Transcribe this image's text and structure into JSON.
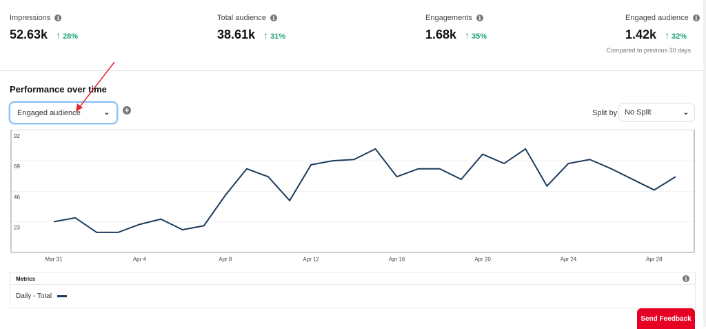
{
  "stats": [
    {
      "label": "Impressions",
      "value": "52.63k",
      "change": "28%"
    },
    {
      "label": "Total audience",
      "value": "38.61k",
      "change": "31%"
    },
    {
      "label": "Engagements",
      "value": "1.68k",
      "change": "35%"
    },
    {
      "label": "Engaged audience",
      "value": "1.42k",
      "change": "32%"
    }
  ],
  "compare_text": "Compared to previous 30 days",
  "section_title": "Performance over time",
  "metric_select": {
    "value": "Engaged audience"
  },
  "split": {
    "label": "Split by",
    "value": "No Split"
  },
  "metrics": {
    "title": "Metrics",
    "legend": "Daily - Total"
  },
  "feedback_label": "Send Feedback",
  "colors": {
    "line": "#1b3a5c",
    "accent": "#e60023",
    "positive": "#1fa37a"
  },
  "chart_data": {
    "type": "line",
    "title": "Performance over time",
    "ylim": [
      0,
      92
    ],
    "yticks": [
      23,
      46,
      69,
      92
    ],
    "xtick_labels": [
      "Mar 31",
      "Apr 4",
      "Apr 8",
      "Apr 12",
      "Apr 16",
      "Apr 20",
      "Apr 24",
      "Apr 28"
    ],
    "x": [
      "Mar 31",
      "Apr 1",
      "Apr 2",
      "Apr 3",
      "Apr 4",
      "Apr 5",
      "Apr 6",
      "Apr 7",
      "Apr 8",
      "Apr 9",
      "Apr 10",
      "Apr 11",
      "Apr 12",
      "Apr 13",
      "Apr 14",
      "Apr 15",
      "Apr 16",
      "Apr 17",
      "Apr 18",
      "Apr 19",
      "Apr 20",
      "Apr 21",
      "Apr 22",
      "Apr 23",
      "Apr 24",
      "Apr 25",
      "Apr 26",
      "Apr 27",
      "Apr 28",
      "Apr 29"
    ],
    "series": [
      {
        "name": "Daily - Total",
        "values": [
          23,
          26,
          15,
          15,
          21,
          25,
          17,
          20,
          43,
          63,
          57,
          39,
          66,
          69,
          70,
          78,
          57,
          63,
          63,
          55,
          74,
          67,
          78,
          50,
          67,
          70,
          63,
          55,
          47,
          57
        ]
      }
    ]
  }
}
